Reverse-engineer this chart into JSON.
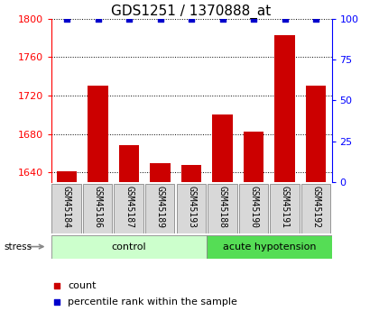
{
  "title": "GDS1251 / 1370888_at",
  "samples": [
    "GSM45184",
    "GSM45186",
    "GSM45187",
    "GSM45189",
    "GSM45193",
    "GSM45188",
    "GSM45190",
    "GSM45191",
    "GSM45192"
  ],
  "counts": [
    1641,
    1730,
    1668,
    1650,
    1648,
    1700,
    1682,
    1783,
    1730
  ],
  "percentiles": [
    100,
    100,
    100,
    100,
    100,
    100,
    100,
    100,
    100
  ],
  "groups": [
    {
      "label": "control",
      "start": 0,
      "end": 5,
      "color": "#ccffcc"
    },
    {
      "label": "acute hypotension",
      "start": 5,
      "end": 9,
      "color": "#55dd55"
    }
  ],
  "stress_label": "stress",
  "ylim_left": [
    1630,
    1800
  ],
  "ylim_right": [
    0,
    100
  ],
  "yticks_left": [
    1640,
    1680,
    1720,
    1760,
    1800
  ],
  "yticks_right": [
    0,
    25,
    50,
    75,
    100
  ],
  "bar_color": "#cc0000",
  "percentile_color": "#0000cc",
  "sample_box_color": "#d8d8d8",
  "legend_count_label": "count",
  "legend_pct_label": "percentile rank within the sample",
  "title_fontsize": 11,
  "tick_fontsize": 8,
  "label_fontsize": 7,
  "group_fontsize": 8
}
